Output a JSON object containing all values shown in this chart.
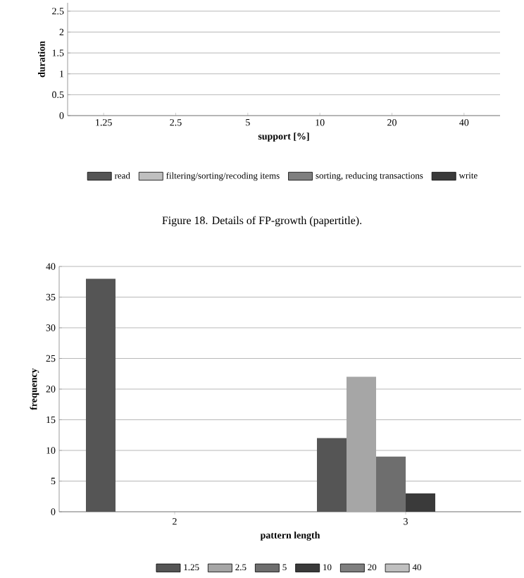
{
  "chart_data": [
    {
      "type": "bar",
      "stacked": true,
      "xlabel": "support [%]",
      "ylabel": "duration",
      "categories": [
        "1.25",
        "2.5",
        "5",
        "10",
        "20",
        "40"
      ],
      "ylim": [
        0,
        2.7
      ],
      "yticks": [
        0,
        0.5,
        1,
        1.5,
        2,
        2.5
      ],
      "grid": "y",
      "legend": "bottom",
      "annotations": [
        "Figure 18. Details of FP-growth (papertitle)."
      ],
      "series": [
        {
          "name": "read",
          "color": "#555555",
          "values": [
            null,
            null,
            null,
            null,
            null,
            null
          ]
        },
        {
          "name": "filtering/sorting/recoding items",
          "color": "#bfbfbf",
          "values": [
            null,
            null,
            null,
            null,
            null,
            null
          ]
        },
        {
          "name": "sorting, reducing transactions",
          "color": "#7f7f7f",
          "values": [
            null,
            null,
            null,
            null,
            null,
            null
          ]
        },
        {
          "name": "write",
          "color": "#3a3a3a",
          "values": [
            null,
            null,
            null,
            null,
            null,
            null
          ]
        }
      ]
    },
    {
      "type": "bar",
      "xlabel": "pattern length",
      "ylabel": "frequency",
      "categories": [
        "2",
        "3"
      ],
      "ylim": [
        0,
        40
      ],
      "yticks": [
        0,
        5,
        10,
        15,
        20,
        25,
        30,
        35,
        40
      ],
      "grid": "y",
      "legend": "bottom",
      "series": [
        {
          "name": "1.25",
          "color": "#555555",
          "values": [
            38,
            12
          ]
        },
        {
          "name": "2.5",
          "color": "#a6a6a6",
          "values": [
            0,
            22
          ]
        },
        {
          "name": "5",
          "color": "#6e6e6e",
          "values": [
            0,
            9
          ]
        },
        {
          "name": "10",
          "color": "#3a3a3a",
          "values": [
            0,
            3
          ]
        },
        {
          "name": "20",
          "color": "#7f7f7f",
          "values": [
            0,
            0
          ]
        },
        {
          "name": "40",
          "color": "#c0c0c0",
          "values": [
            0,
            0
          ]
        }
      ]
    }
  ]
}
